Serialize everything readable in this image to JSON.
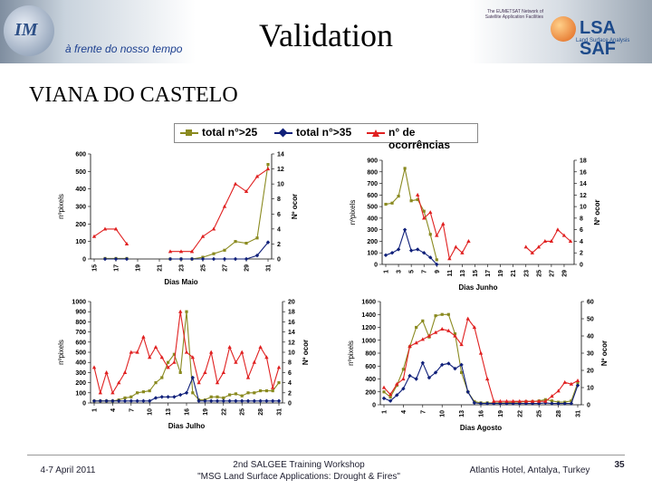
{
  "header": {
    "tagline": "à frente do nosso tempo",
    "title": "Validation",
    "im_logo_text": "IM",
    "saf_small": "The EUMETSAT Network of Satellite Application Facilities",
    "saf_name": "LSA SAF",
    "saf_sub": "Land Surface Analysis"
  },
  "place": "VIANA DO CASTELO",
  "legend": {
    "items": [
      {
        "label": "total n°>25",
        "color": "#8a8a20",
        "marker": "square"
      },
      {
        "label": "total n°>35",
        "color": "#10207a",
        "marker": "diamond"
      },
      {
        "label": "n° de ocorrências",
        "color": "#e02020",
        "marker": "triangle"
      }
    ]
  },
  "footer": {
    "date": "4-7 April 2011",
    "workshop_line1": "2nd SALGEE Training Workshop",
    "workshop_line2": "\"MSG Land Surface Applications: Drought & Fires\"",
    "venue": "Atlantis Hotel, Antalya, Turkey",
    "page": "35"
  },
  "chart_data": [
    {
      "type": "line",
      "title": "",
      "xlabel": "Dias Maio",
      "ylabel": "nºpixels",
      "y2label": "Nº ocor",
      "ylim": [
        0,
        600
      ],
      "y2lim": [
        0,
        14
      ],
      "yticks": [
        0,
        100,
        200,
        300,
        400,
        500,
        600
      ],
      "y2ticks": [
        0,
        2,
        4,
        6,
        8,
        10,
        12,
        14
      ],
      "x": [
        15,
        16,
        17,
        18,
        19,
        20,
        21,
        22,
        23,
        24,
        25,
        26,
        27,
        28,
        29,
        30,
        31
      ],
      "xticks": [
        15,
        17,
        19,
        21,
        23,
        25,
        27,
        29,
        31
      ],
      "series": [
        {
          "name": "total n°>25",
          "axis": "left",
          "color": "#8a8a20",
          "marker": "square",
          "values": [
            null,
            3,
            3,
            3,
            null,
            null,
            null,
            0,
            0,
            0,
            10,
            30,
            50,
            100,
            90,
            120,
            540
          ]
        },
        {
          "name": "total n°>35",
          "axis": "left",
          "color": "#10207a",
          "marker": "diamond",
          "values": [
            null,
            0,
            0,
            0,
            null,
            null,
            null,
            0,
            0,
            0,
            0,
            0,
            0,
            0,
            0,
            20,
            95
          ]
        },
        {
          "name": "n° de ocorrências",
          "axis": "right",
          "color": "#e02020",
          "marker": "triangle",
          "values": [
            3,
            4,
            4,
            2,
            null,
            null,
            null,
            1,
            1,
            1,
            3,
            4,
            7,
            10,
            9,
            11,
            12
          ]
        }
      ]
    },
    {
      "type": "line",
      "title": "",
      "xlabel": "Dias Junho",
      "ylabel": "nºpixels",
      "y2label": "Nº ocor",
      "ylim": [
        0,
        900
      ],
      "y2lim": [
        0,
        18
      ],
      "yticks": [
        0,
        100,
        200,
        300,
        400,
        500,
        600,
        700,
        800,
        900
      ],
      "y2ticks": [
        0,
        2,
        4,
        6,
        8,
        10,
        12,
        14,
        16,
        18
      ],
      "x": [
        1,
        2,
        3,
        4,
        5,
        6,
        7,
        8,
        9,
        10,
        11,
        12,
        13,
        14,
        15,
        16,
        17,
        18,
        19,
        20,
        21,
        22,
        23,
        24,
        25,
        26,
        27,
        28,
        29,
        30
      ],
      "xticks": [
        1,
        3,
        5,
        7,
        9,
        11,
        13,
        15,
        17,
        19,
        21,
        23,
        25,
        27,
        29
      ],
      "series": [
        {
          "name": "total n°>25",
          "axis": "left",
          "color": "#8a8a20",
          "marker": "square",
          "values": [
            520,
            530,
            590,
            830,
            550,
            560,
            460,
            260,
            40,
            null,
            null,
            null,
            null,
            null,
            null,
            null,
            null,
            null,
            null,
            null,
            null,
            null,
            null,
            null,
            null,
            null,
            null,
            null,
            null,
            null
          ]
        },
        {
          "name": "total n°>35",
          "axis": "left",
          "color": "#10207a",
          "marker": "diamond",
          "values": [
            80,
            100,
            130,
            300,
            120,
            130,
            100,
            60,
            0,
            null,
            null,
            null,
            null,
            null,
            null,
            null,
            null,
            null,
            null,
            null,
            null,
            null,
            null,
            null,
            null,
            null,
            null,
            null,
            null,
            null
          ]
        },
        {
          "name": "n° de ocorrências",
          "axis": "right",
          "color": "#e02020",
          "marker": "triangle",
          "values": [
            null,
            null,
            null,
            null,
            null,
            12,
            8,
            9,
            5,
            7,
            1,
            3,
            2,
            4,
            null,
            null,
            null,
            null,
            null,
            null,
            null,
            null,
            3,
            2,
            3,
            4,
            4,
            6,
            5,
            4
          ]
        }
      ]
    },
    {
      "type": "line",
      "title": "",
      "xlabel": "Dias Julho",
      "ylabel": "nºpixels",
      "y2label": "Nº ocor",
      "ylim": [
        0,
        1000
      ],
      "y2lim": [
        0,
        20
      ],
      "yticks": [
        0,
        100,
        200,
        300,
        400,
        500,
        600,
        700,
        800,
        900,
        1000
      ],
      "y2ticks": [
        0,
        2,
        4,
        6,
        8,
        10,
        12,
        14,
        16,
        18,
        20
      ],
      "x": [
        1,
        2,
        3,
        4,
        5,
        6,
        7,
        8,
        9,
        10,
        11,
        12,
        13,
        14,
        15,
        16,
        17,
        18,
        19,
        20,
        21,
        22,
        23,
        24,
        25,
        26,
        27,
        28,
        29,
        30,
        31
      ],
      "xticks": [
        1,
        4,
        7,
        10,
        13,
        16,
        19,
        22,
        25,
        28,
        31
      ],
      "series": [
        {
          "name": "total n°>25",
          "axis": "left",
          "color": "#8a8a20",
          "marker": "square",
          "values": [
            20,
            20,
            20,
            20,
            30,
            50,
            60,
            100,
            110,
            120,
            200,
            250,
            400,
            480,
            300,
            900,
            100,
            30,
            30,
            60,
            60,
            50,
            80,
            90,
            70,
            100,
            100,
            120,
            120,
            120,
            200
          ]
        },
        {
          "name": "total n°>35",
          "axis": "left",
          "color": "#10207a",
          "marker": "diamond",
          "values": [
            20,
            20,
            20,
            20,
            20,
            20,
            20,
            20,
            20,
            20,
            50,
            60,
            60,
            60,
            80,
            100,
            250,
            20,
            20,
            20,
            20,
            20,
            20,
            20,
            20,
            20,
            20,
            20,
            20,
            20,
            20
          ]
        },
        {
          "name": "n° de ocorrências",
          "axis": "right",
          "color": "#e02020",
          "marker": "triangle",
          "values": [
            7,
            2,
            6,
            2,
            4,
            6,
            10,
            10,
            13,
            9,
            11,
            9,
            7,
            8,
            18,
            10,
            9,
            4,
            6,
            10,
            4,
            6,
            11,
            8,
            10,
            5,
            8,
            11,
            9,
            3,
            7
          ]
        }
      ]
    },
    {
      "type": "line",
      "title": "",
      "xlabel": "Dias Agosto",
      "ylabel": "nºpixels",
      "y2label": "Nº ocor",
      "ylim": [
        0,
        1600
      ],
      "y2lim": [
        0,
        60
      ],
      "yticks": [
        0,
        200,
        400,
        600,
        800,
        1000,
        1200,
        1400,
        1600
      ],
      "y2ticks": [
        0,
        10,
        20,
        30,
        40,
        50,
        60
      ],
      "x": [
        1,
        2,
        3,
        4,
        5,
        6,
        7,
        8,
        9,
        10,
        11,
        12,
        13,
        14,
        15,
        16,
        17,
        18,
        19,
        20,
        21,
        22,
        23,
        24,
        25,
        26,
        27,
        28,
        29,
        30,
        31
      ],
      "xticks": [
        1,
        4,
        7,
        10,
        13,
        16,
        19,
        22,
        25,
        28,
        31
      ],
      "series": [
        {
          "name": "total n°>25",
          "axis": "left",
          "color": "#8a8a20",
          "marker": "square",
          "values": [
            200,
            120,
            300,
            550,
            900,
            1200,
            1300,
            1050,
            1380,
            1400,
            1400,
            1100,
            500,
            200,
            50,
            30,
            30,
            30,
            30,
            30,
            40,
            40,
            50,
            50,
            60,
            80,
            60,
            40,
            40,
            60,
            340
          ]
        },
        {
          "name": "total n°>35",
          "axis": "left",
          "color": "#10207a",
          "marker": "diamond",
          "values": [
            100,
            60,
            150,
            250,
            450,
            400,
            650,
            420,
            500,
            620,
            640,
            560,
            620,
            200,
            30,
            20,
            20,
            20,
            20,
            20,
            20,
            20,
            20,
            20,
            20,
            30,
            20,
            20,
            20,
            20,
            300
          ]
        },
        {
          "name": "n° de ocorrências",
          "axis": "right",
          "color": "#e02020",
          "marker": "triangle",
          "values": [
            10,
            6,
            12,
            15,
            34,
            36,
            38,
            40,
            42,
            44,
            43,
            40,
            35,
            50,
            45,
            30,
            15,
            2,
            2,
            2,
            2,
            2,
            2,
            2,
            2,
            2,
            5,
            8,
            13,
            12,
            14
          ]
        }
      ]
    }
  ]
}
